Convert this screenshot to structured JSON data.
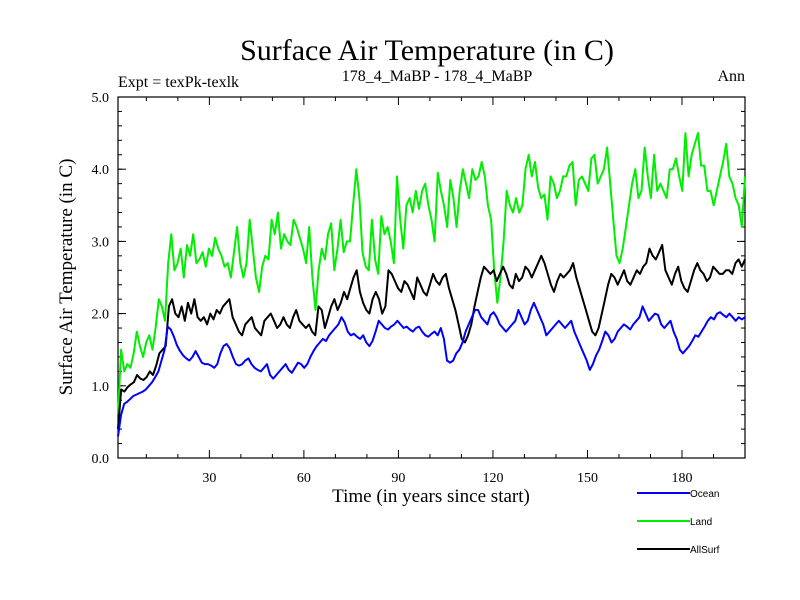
{
  "chart_data": {
    "type": "line",
    "title": "Surface Air Temperature (in C)",
    "left_label": "Expt = texPk-texlk",
    "center_label": "178_4_MaBP - 178_4_MaBP",
    "right_label": "Ann",
    "xlabel": "Time (in years since start)",
    "ylabel": "Surface Air Temperature (in C)",
    "xlim": [
      1,
      200
    ],
    "ylim": [
      0,
      5
    ],
    "x_ticks": [
      30,
      60,
      90,
      120,
      150,
      180
    ],
    "y_ticks": [
      "0.0",
      "1.0",
      "2.0",
      "3.0",
      "4.0",
      "5.0"
    ],
    "legend_position": "bottom-right",
    "series": [
      {
        "name": "Ocean",
        "color": "#0000ff",
        "values": [
          0.3,
          0.6,
          0.75,
          0.78,
          0.82,
          0.86,
          0.88,
          0.9,
          0.92,
          0.95,
          1.0,
          1.05,
          1.12,
          1.2,
          1.35,
          1.5,
          1.82,
          1.78,
          1.68,
          1.56,
          1.48,
          1.42,
          1.38,
          1.35,
          1.4,
          1.48,
          1.4,
          1.32,
          1.3,
          1.3,
          1.28,
          1.25,
          1.3,
          1.45,
          1.55,
          1.58,
          1.52,
          1.4,
          1.3,
          1.28,
          1.3,
          1.35,
          1.38,
          1.3,
          1.25,
          1.22,
          1.2,
          1.25,
          1.3,
          1.15,
          1.1,
          1.15,
          1.2,
          1.25,
          1.3,
          1.22,
          1.18,
          1.25,
          1.32,
          1.3,
          1.25,
          1.3,
          1.4,
          1.48,
          1.55,
          1.6,
          1.65,
          1.62,
          1.7,
          1.75,
          1.8,
          1.85,
          1.95,
          1.88,
          1.75,
          1.7,
          1.72,
          1.68,
          1.65,
          1.7,
          1.6,
          1.55,
          1.62,
          1.75,
          1.9,
          1.85,
          1.8,
          1.78,
          1.82,
          1.85,
          1.9,
          1.85,
          1.8,
          1.82,
          1.78,
          1.75,
          1.8,
          1.82,
          1.75,
          1.7,
          1.68,
          1.72,
          1.75,
          1.7,
          1.8,
          1.65,
          1.35,
          1.32,
          1.35,
          1.45,
          1.5,
          1.6,
          1.75,
          1.85,
          1.95,
          2.05,
          2.05,
          1.95,
          1.9,
          1.85,
          1.98,
          2.02,
          1.95,
          1.85,
          1.8,
          1.75,
          1.8,
          1.85,
          1.9,
          2.05,
          1.95,
          1.85,
          1.9,
          2.05,
          2.15,
          2.05,
          1.95,
          1.85,
          1.7,
          1.75,
          1.8,
          1.85,
          1.9,
          1.85,
          1.8,
          1.85,
          1.9,
          1.75,
          1.65,
          1.55,
          1.45,
          1.35,
          1.22,
          1.3,
          1.42,
          1.5,
          1.62,
          1.75,
          1.7,
          1.6,
          1.65,
          1.75,
          1.8,
          1.85,
          1.82,
          1.78,
          1.85,
          1.9,
          1.95,
          2.1,
          2.0,
          1.9,
          1.95,
          2.0,
          1.98,
          1.85,
          1.8,
          1.85,
          1.9,
          1.75,
          1.65,
          1.5,
          1.45,
          1.5,
          1.55,
          1.62,
          1.7,
          1.68,
          1.75,
          1.82,
          1.9,
          1.95,
          1.92,
          2.0,
          2.02,
          1.98,
          1.95,
          2.0,
          1.95,
          1.9,
          1.95,
          1.92,
          1.95
        ]
      },
      {
        "name": "Land",
        "color": "#00ee00",
        "values": [
          0.6,
          1.5,
          1.2,
          1.3,
          1.25,
          1.45,
          1.75,
          1.55,
          1.4,
          1.6,
          1.7,
          1.5,
          1.8,
          2.2,
          2.1,
          1.9,
          2.7,
          3.1,
          2.6,
          2.7,
          2.9,
          2.5,
          2.95,
          2.8,
          3.1,
          2.7,
          2.75,
          2.85,
          2.65,
          2.9,
          2.8,
          3.05,
          2.9,
          2.8,
          2.65,
          2.7,
          2.5,
          2.85,
          3.2,
          2.7,
          2.5,
          2.7,
          3.3,
          2.9,
          2.5,
          2.3,
          2.65,
          2.8,
          2.75,
          3.3,
          3.1,
          3.4,
          2.9,
          3.1,
          3.0,
          2.95,
          3.3,
          3.2,
          3.05,
          2.9,
          2.7,
          3.2,
          2.5,
          2.05,
          2.6,
          2.9,
          2.75,
          3.1,
          3.25,
          2.6,
          2.9,
          3.3,
          2.85,
          3.0,
          3.0,
          3.5,
          4.0,
          3.6,
          2.85,
          2.65,
          2.6,
          3.3,
          2.75,
          2.55,
          3.35,
          3.1,
          3.2,
          3.0,
          2.7,
          3.9,
          3.3,
          2.9,
          3.5,
          3.6,
          3.4,
          3.7,
          3.45,
          3.7,
          3.8,
          3.5,
          3.3,
          3.0,
          3.95,
          3.7,
          3.5,
          3.2,
          3.85,
          3.6,
          3.2,
          3.7,
          4.0,
          3.8,
          3.6,
          4.0,
          3.85,
          3.9,
          4.1,
          3.9,
          3.5,
          3.3,
          2.6,
          2.15,
          2.5,
          3.0,
          3.7,
          3.5,
          3.4,
          3.6,
          3.4,
          3.5,
          4.0,
          4.2,
          3.9,
          4.1,
          3.75,
          3.6,
          3.65,
          3.3,
          3.9,
          3.8,
          3.6,
          3.7,
          3.9,
          3.9,
          4.05,
          4.1,
          3.5,
          3.85,
          3.9,
          3.8,
          3.7,
          4.15,
          4.2,
          3.8,
          3.9,
          4.0,
          4.3,
          3.8,
          3.3,
          2.8,
          2.7,
          2.9,
          3.2,
          3.5,
          3.8,
          4.0,
          3.6,
          3.7,
          4.3,
          3.9,
          3.6,
          4.2,
          3.7,
          3.8,
          3.7,
          3.6,
          4.0,
          4.0,
          4.15,
          3.9,
          3.7,
          4.5,
          3.9,
          4.2,
          4.35,
          4.5,
          4.05,
          4.05,
          3.7,
          3.7,
          3.5,
          3.7,
          3.9,
          4.1,
          4.35,
          3.9,
          3.8,
          3.6,
          3.5,
          3.2,
          3.9
        ]
      },
      {
        "name": "AllSurf",
        "color": "#000000",
        "values": [
          0.4,
          0.95,
          0.92,
          0.98,
          1.02,
          1.05,
          1.15,
          1.1,
          1.08,
          1.12,
          1.2,
          1.15,
          1.28,
          1.45,
          1.5,
          1.55,
          2.1,
          2.2,
          2.0,
          1.95,
          2.1,
          1.9,
          2.15,
          2.0,
          2.2,
          1.95,
          1.9,
          1.95,
          1.85,
          2.0,
          1.92,
          2.05,
          2.0,
          2.1,
          2.15,
          2.2,
          1.95,
          1.85,
          1.75,
          1.7,
          1.85,
          1.9,
          1.95,
          1.8,
          1.75,
          1.7,
          1.9,
          1.95,
          2.0,
          1.9,
          1.8,
          1.85,
          1.95,
          1.85,
          1.8,
          1.95,
          2.05,
          1.9,
          1.85,
          1.8,
          1.85,
          1.75,
          1.7,
          2.1,
          2.05,
          1.8,
          1.95,
          2.1,
          2.2,
          2.05,
          2.15,
          2.3,
          2.2,
          2.35,
          2.5,
          2.6,
          2.3,
          2.15,
          2.05,
          2.0,
          2.2,
          2.3,
          2.2,
          2.0,
          2.1,
          2.6,
          2.55,
          2.45,
          2.35,
          2.3,
          2.45,
          2.4,
          2.3,
          2.2,
          2.5,
          2.4,
          2.3,
          2.25,
          2.4,
          2.55,
          2.45,
          2.4,
          2.5,
          2.55,
          2.35,
          2.2,
          2.05,
          1.85,
          1.65,
          1.6,
          1.7,
          1.85,
          2.1,
          2.3,
          2.5,
          2.65,
          2.6,
          2.55,
          2.6,
          2.45,
          2.55,
          2.65,
          2.55,
          2.4,
          2.35,
          2.55,
          2.45,
          2.5,
          2.65,
          2.6,
          2.5,
          2.6,
          2.7,
          2.8,
          2.7,
          2.55,
          2.4,
          2.3,
          2.45,
          2.55,
          2.5,
          2.55,
          2.6,
          2.7,
          2.5,
          2.35,
          2.2,
          2.05,
          1.9,
          1.75,
          1.7,
          1.8,
          2.0,
          2.2,
          2.4,
          2.55,
          2.5,
          2.4,
          2.5,
          2.6,
          2.45,
          2.4,
          2.5,
          2.6,
          2.55,
          2.65,
          2.7,
          2.9,
          2.8,
          2.75,
          2.85,
          2.95,
          2.6,
          2.5,
          2.4,
          2.55,
          2.65,
          2.45,
          2.35,
          2.3,
          2.45,
          2.6,
          2.7,
          2.6,
          2.55,
          2.45,
          2.5,
          2.65,
          2.6,
          2.55,
          2.55,
          2.6,
          2.6,
          2.55,
          2.7,
          2.75,
          2.65,
          2.75
        ]
      }
    ]
  }
}
